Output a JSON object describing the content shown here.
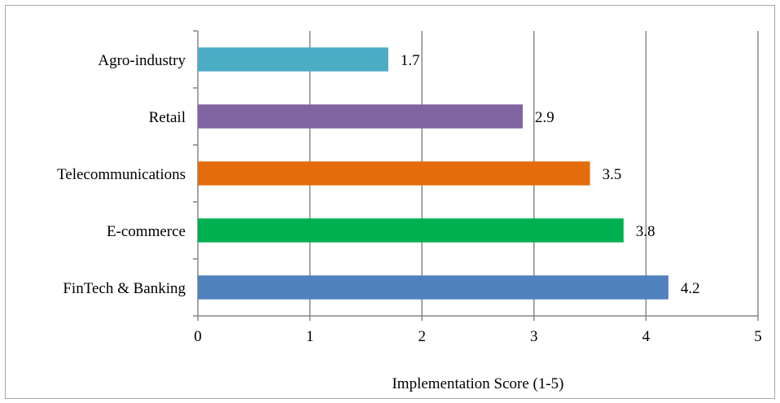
{
  "chart_data": {
    "type": "bar",
    "orientation": "horizontal",
    "categories": [
      "FinTech & Banking",
      "E-commerce",
      "Telecommunications",
      "Retail",
      "Agro-industry"
    ],
    "values": [
      4.2,
      3.8,
      3.5,
      2.9,
      1.7
    ],
    "value_labels": [
      "4.2",
      "3.8",
      "3.5",
      "2.9",
      "1.7"
    ],
    "colors": [
      "#4f81bd",
      "#00b050",
      "#e46c0a",
      "#8064a2",
      "#4bacc6"
    ],
    "title": "",
    "xlabel": "Implementation Score (1-5)",
    "ylabel": "",
    "xlim": [
      0,
      5
    ],
    "xticks": [
      "0",
      "1",
      "2",
      "3",
      "4",
      "5"
    ],
    "grid": "vertical",
    "legend": "none"
  }
}
